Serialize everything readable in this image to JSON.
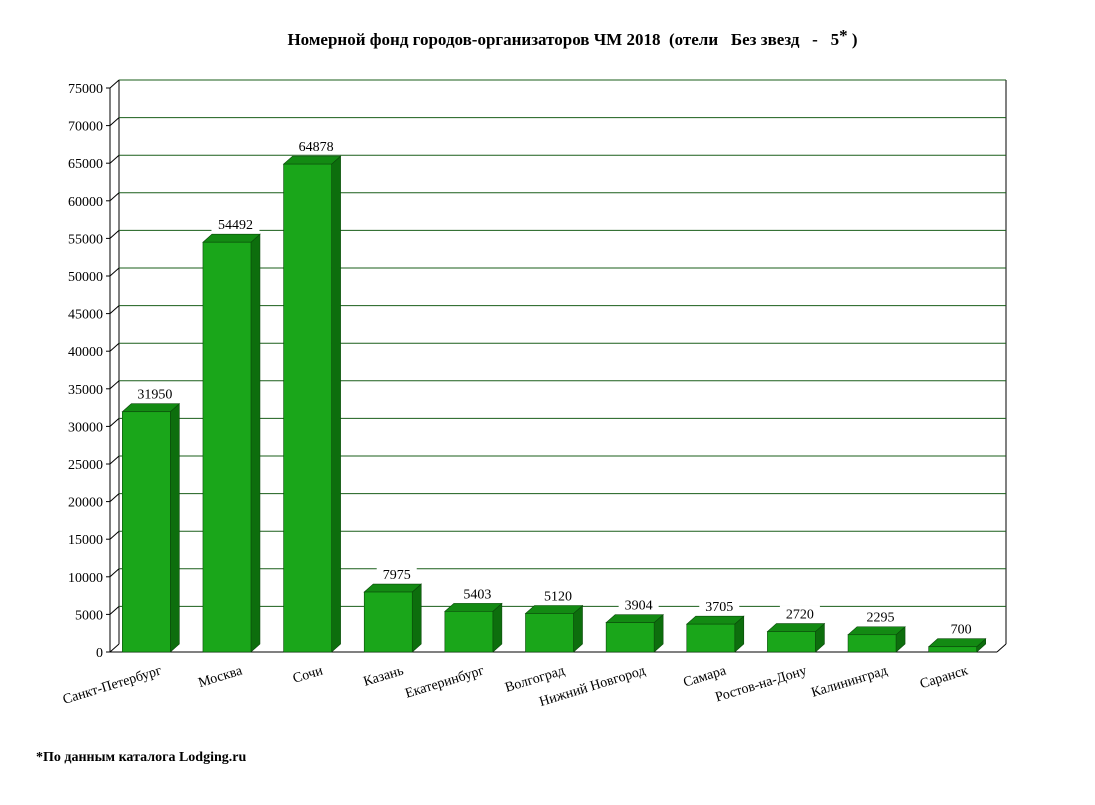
{
  "chart_data": {
    "type": "bar",
    "title_main": "Номерной фонд городов-организаторов ЧМ 2018  (отели   Без звезд   -   5",
    "title_star": "*",
    "title_end": " )",
    "categories": [
      "Санкт-Петербург",
      "Москва",
      "Сочи",
      "Казань",
      "Екатеринбург",
      "Волгоград",
      "Нижний Новгород",
      "Самара",
      "Ростов-на-Дону",
      "Калининград",
      "Саранск"
    ],
    "values": [
      31950,
      54492,
      64878,
      7975,
      5403,
      5120,
      3904,
      3705,
      2720,
      2295,
      700
    ],
    "xlabel": "",
    "ylabel": "",
    "ylim": [
      0,
      75000
    ],
    "yticks": [
      0,
      5000,
      10000,
      15000,
      20000,
      25000,
      30000,
      35000,
      40000,
      45000,
      50000,
      55000,
      60000,
      65000,
      70000,
      75000
    ],
    "grid": true,
    "legend": "none",
    "bar_color": "#1aa61a",
    "bar_side_color": "#0d6e0d",
    "bar_top_color": "#138a13",
    "grid_color": "#1a5e1a"
  },
  "footnote": "*По данным каталога Lodging.ru"
}
